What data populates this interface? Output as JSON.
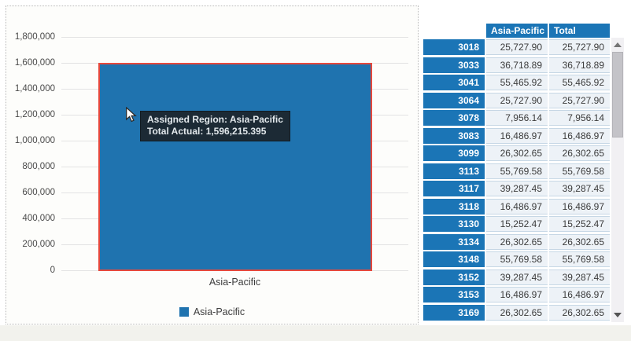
{
  "chart": {
    "y_axis_labels": [
      "1,800,000",
      "1,600,000",
      "1,400,000",
      "1,200,000",
      "1,000,000",
      "800,000",
      "600,000",
      "400,000",
      "200,000",
      "0"
    ],
    "x_axis_label": "Asia-Pacific",
    "legend_label": "Asia-Pacific",
    "bar_color": "#1f73af",
    "bar_border_color": "#e6483c",
    "tooltip": {
      "line1": "Assigned Region: Asia-Pacific",
      "line2": "Total Actual: 1,596,215.395"
    }
  },
  "chart_data": {
    "type": "bar",
    "categories": [
      "Asia-Pacific"
    ],
    "values": [
      1596215.395
    ],
    "title": "",
    "xlabel": "",
    "ylabel": "",
    "ylim": [
      0,
      1800000
    ],
    "ytick_interval": 200000,
    "grid": true,
    "legend_position": "bottom",
    "legend_entries": [
      "Asia-Pacific"
    ],
    "annotations": [
      "Assigned Region: Asia-Pacific",
      "Total Actual: 1,596,215.395"
    ]
  },
  "table": {
    "columns": [
      "Asia-Pacific",
      "Total"
    ],
    "rows": [
      {
        "id": "3018",
        "asia_pacific": "25,727.90",
        "total": "25,727.90"
      },
      {
        "id": "3033",
        "asia_pacific": "36,718.89",
        "total": "36,718.89"
      },
      {
        "id": "3041",
        "asia_pacific": "55,465.92",
        "total": "55,465.92"
      },
      {
        "id": "3064",
        "asia_pacific": "25,727.90",
        "total": "25,727.90"
      },
      {
        "id": "3078",
        "asia_pacific": "7,956.14",
        "total": "7,956.14"
      },
      {
        "id": "3083",
        "asia_pacific": "16,486.97",
        "total": "16,486.97"
      },
      {
        "id": "3099",
        "asia_pacific": "26,302.65",
        "total": "26,302.65"
      },
      {
        "id": "3113",
        "asia_pacific": "55,769.58",
        "total": "55,769.58"
      },
      {
        "id": "3117",
        "asia_pacific": "39,287.45",
        "total": "39,287.45"
      },
      {
        "id": "3118",
        "asia_pacific": "16,486.97",
        "total": "16,486.97"
      },
      {
        "id": "3130",
        "asia_pacific": "15,252.47",
        "total": "15,252.47"
      },
      {
        "id": "3134",
        "asia_pacific": "26,302.65",
        "total": "26,302.65"
      },
      {
        "id": "3148",
        "asia_pacific": "55,769.58",
        "total": "55,769.58"
      },
      {
        "id": "3152",
        "asia_pacific": "39,287.45",
        "total": "39,287.45"
      },
      {
        "id": "3153",
        "asia_pacific": "16,486.97",
        "total": "16,486.97"
      },
      {
        "id": "3169",
        "asia_pacific": "26,302.65",
        "total": "26,302.65"
      }
    ]
  }
}
